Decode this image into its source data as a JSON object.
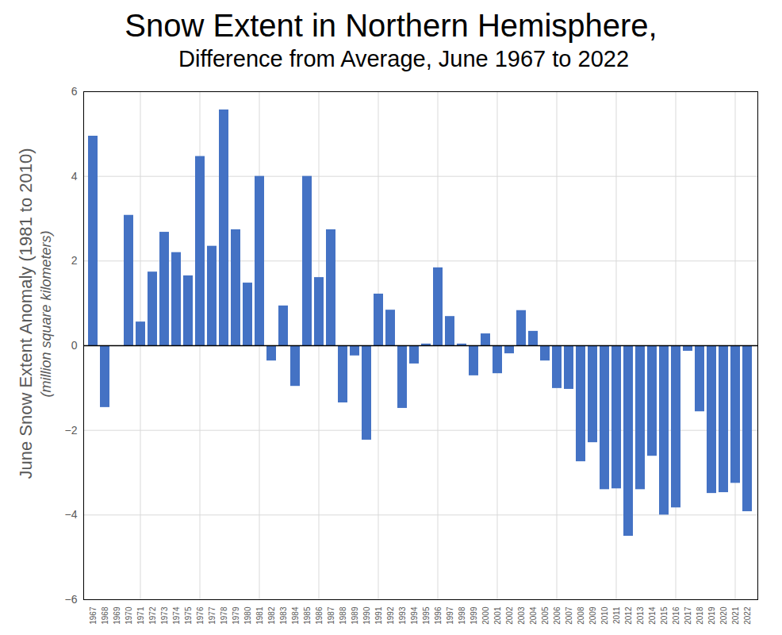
{
  "chart_data": {
    "type": "bar",
    "title": "Snow Extent in Northern Hemisphere,",
    "subtitle": "Difference from Average, June 1967 to 2022",
    "y_label": "June Snow Extent Anomaly (1981 to 2010)",
    "y_label_units": "(million square kilometers)",
    "categories": [
      "1967",
      "1968",
      "1969",
      "1970",
      "1971",
      "1972",
      "1973",
      "1974",
      "1975",
      "1976",
      "1977",
      "1978",
      "1979",
      "1980",
      "1981",
      "1982",
      "1983",
      "1984",
      "1985",
      "1986",
      "1987",
      "1988",
      "1989",
      "1990",
      "1991",
      "1992",
      "1993",
      "1994",
      "1995",
      "1996",
      "1997",
      "1998",
      "1999",
      "2000",
      "2001",
      "2002",
      "2003",
      "2004",
      "2005",
      "2006",
      "2007",
      "2008",
      "2009",
      "2010",
      "2011",
      "2012",
      "2013",
      "2014",
      "2015",
      "2016",
      "2017",
      "2018",
      "2019",
      "2020",
      "2021",
      "2022"
    ],
    "values": [
      4.95,
      -1.46,
      null,
      3.08,
      0.56,
      1.74,
      2.68,
      2.2,
      1.65,
      4.47,
      2.35,
      5.57,
      2.74,
      1.48,
      4.0,
      -0.36,
      0.94,
      -0.96,
      4.0,
      1.61,
      2.74,
      -1.35,
      -0.24,
      -2.23,
      1.22,
      0.84,
      -1.48,
      -0.43,
      0.04,
      1.84,
      0.69,
      0.04,
      -0.71,
      0.28,
      -0.66,
      -0.19,
      0.83,
      0.34,
      -0.36,
      -1.01,
      -1.03,
      -2.74,
      -2.29,
      -3.4,
      -3.38,
      -4.5,
      -3.4,
      -2.61,
      -4.0,
      -3.83,
      -0.13,
      -1.56,
      -3.49,
      -3.47,
      -3.25,
      -3.92
    ],
    "color": "#4472c4",
    "ylim": [
      -6,
      6
    ],
    "yticks": [
      -6,
      -4,
      -2,
      0,
      2,
      4,
      6
    ],
    "grid": true
  }
}
